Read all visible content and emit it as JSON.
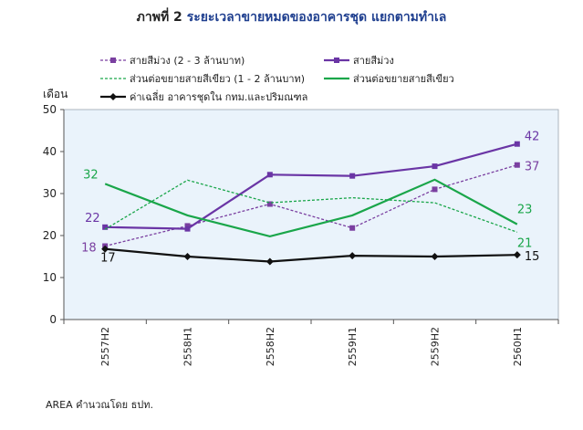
{
  "title_prefix": "ภาพที่ 2",
  "title_main": "ระยะเวลาขายหมดของอาคารชุด แยกตามทำเล",
  "source_note": "AREA คำนวณโดย ธปท.",
  "chart_data": {
    "type": "line",
    "categories": [
      "2557H2",
      "2558H1",
      "2558H2",
      "2559H1",
      "2559H2",
      "2560H1"
    ],
    "ylabel": "เดือน",
    "ylim": [
      0,
      50
    ],
    "yticks": [
      "0",
      "10",
      "20",
      "30",
      "40",
      "50"
    ],
    "grid": false,
    "legend_position": "top",
    "plot_background": "#eaf3fb",
    "series": [
      {
        "name": "สายสีม่วง (2 - 3 ล้านบาท)",
        "color": "#7a3fa0",
        "dash": true,
        "marker": "square",
        "values": [
          17.5,
          22.3,
          27.5,
          21.8,
          31.0,
          36.8
        ],
        "label_first": "18",
        "label_last": "37"
      },
      {
        "name": "สายสีม่วง",
        "color": "#6a35a5",
        "dash": false,
        "marker": "square",
        "values": [
          22.0,
          21.6,
          34.5,
          34.2,
          36.5,
          41.8
        ],
        "label_first": "22",
        "label_last": "42"
      },
      {
        "name": "ส่วนต่อขยายสายสีเขียว (1 - 2 ล้านบาท)",
        "color": "#1aa64a",
        "dash": true,
        "marker": "none",
        "values": [
          21.5,
          33.2,
          27.8,
          29.0,
          27.8,
          20.8
        ],
        "label_first": "",
        "label_last": "21"
      },
      {
        "name": "ส่วนต่อขยายสายสีเขียว",
        "color": "#1aa64a",
        "dash": false,
        "marker": "none",
        "values": [
          32.3,
          24.8,
          19.8,
          24.8,
          33.3,
          22.7
        ],
        "label_first": "32",
        "label_last": "23"
      },
      {
        "name": "ค่าเฉลี่ย อาคารชุดใน กทม.และปริมณฑล",
        "color": "#111111",
        "dash": false,
        "marker": "diamond",
        "values": [
          16.8,
          15.0,
          13.8,
          15.2,
          15.0,
          15.4
        ],
        "label_first": "17",
        "label_last": "15"
      }
    ]
  }
}
